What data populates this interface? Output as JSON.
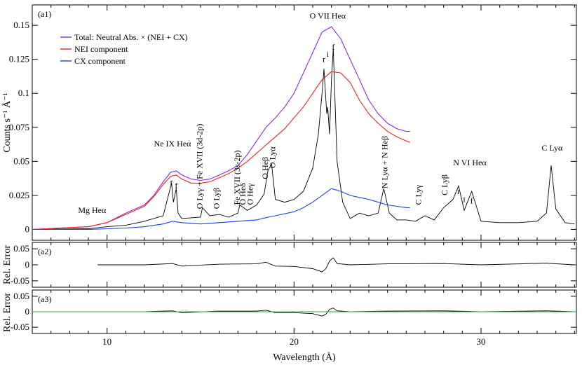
{
  "chart_data": {
    "type": "line",
    "xlabel": "Wavelength (Å)",
    "xlim": [
      6,
      35.1
    ],
    "x_ticks": [
      "10",
      "20",
      "30"
    ],
    "panels": [
      {
        "label": "(a1)",
        "ylabel": "Counts s⁻¹ Å⁻¹",
        "ylim": [
          -0.008,
          0.165
        ],
        "y_ticks": [
          "0",
          "0.025",
          "0.05",
          "0.075",
          "0.1",
          "0.125",
          "0.15"
        ],
        "legend": {
          "placement": "top-left",
          "entries": [
            {
              "name": "Total: Neutral Abs. × (NEI + CX)",
              "color": "#8a2be2"
            },
            {
              "name": "NEI component",
              "color": "#ee2222"
            },
            {
              "name": "CX component",
              "color": "#1f3fe0"
            }
          ]
        },
        "annotations": [
          {
            "text": "O VII Heα",
            "x": 21.8,
            "y": 0.155
          },
          {
            "text": "r",
            "x": 21.6,
            "y": 0.123
          },
          {
            "text": "i",
            "x": 21.8,
            "y": 0.127
          },
          {
            "text": "f",
            "x": 22.1,
            "y": 0.132
          },
          {
            "text": "Ne IX Heα",
            "x": 13.5,
            "y": 0.061
          },
          {
            "text": "r",
            "x": 13.45,
            "y": 0.033
          },
          {
            "text": "f",
            "x": 13.7,
            "y": 0.03
          },
          {
            "text": "Mg Heα",
            "x": 9.2,
            "y": 0.012
          },
          {
            "text": "O Lyγ + Fe XVII (3d-2p)",
            "x": 15.1,
            "y": 0.015
          },
          {
            "text": "O Lyβ",
            "x": 16.0,
            "y": 0.015
          },
          {
            "text": "Fe XVII (3s-2p)",
            "x": 17.1,
            "y": 0.018
          },
          {
            "text": "O Heδ",
            "x": 17.4,
            "y": 0.018
          },
          {
            "text": "O Heγ",
            "x": 17.8,
            "y": 0.018
          },
          {
            "text": "O Heβ",
            "x": 18.6,
            "y": 0.037
          },
          {
            "text": "O Lyα",
            "x": 19.0,
            "y": 0.045
          },
          {
            "text": "N Lyα + N Heβ",
            "x": 25.0,
            "y": 0.03
          },
          {
            "text": "C Lyγ",
            "x": 26.8,
            "y": 0.018
          },
          {
            "text": "C Lyβ",
            "x": 28.2,
            "y": 0.025
          },
          {
            "text": "r",
            "x": 28.8,
            "y": 0.026
          },
          {
            "text": "i",
            "x": 29.1,
            "y": 0.02
          },
          {
            "text": "f",
            "x": 29.5,
            "y": 0.019
          },
          {
            "text": "N VI Heα",
            "x": 29.4,
            "y": 0.047
          },
          {
            "text": "C Lyα",
            "x": 33.8,
            "y": 0.058
          }
        ],
        "series": [
          {
            "name": "Observed data (black)",
            "color": "#000000",
            "x": [
              6,
              9,
              10,
              11,
              12,
              13,
              13.45,
              13.55,
              13.7,
              13.8,
              14,
              15,
              15.1,
              15.5,
              16,
              16.5,
              17,
              17.1,
              17.5,
              18,
              18.4,
              18.6,
              18.8,
              19,
              19.5,
              20,
              20.5,
              21,
              21.3,
              21.5,
              21.6,
              21.75,
              21.8,
              21.9,
              22.0,
              22.1,
              22.3,
              22.6,
              23,
              23.5,
              24,
              24.5,
              24.8,
              25.1,
              25.5,
              26,
              26.5,
              27,
              27.5,
              28,
              28.5,
              28.8,
              29.1,
              29.5,
              30,
              31,
              32,
              33,
              33.5,
              33.75,
              34,
              34.5,
              35
            ],
            "y": [
              0.0,
              0.0005,
              0.002,
              0.003,
              0.006,
              0.01,
              0.034,
              0.02,
              0.03,
              0.012,
              0.008,
              0.009,
              0.016,
              0.01,
              0.011,
              0.009,
              0.012,
              0.018,
              0.014,
              0.018,
              0.026,
              0.043,
              0.048,
              0.022,
              0.02,
              0.022,
              0.028,
              0.045,
              0.07,
              0.1,
              0.118,
              0.085,
              0.09,
              0.07,
              0.11,
              0.133,
              0.05,
              0.02,
              0.008,
              0.012,
              0.01,
              0.012,
              0.03,
              0.012,
              0.007,
              0.007,
              0.006,
              0.01,
              0.007,
              0.016,
              0.022,
              0.032,
              0.014,
              0.028,
              0.006,
              0.005,
              0.005,
              0.006,
              0.012,
              0.047,
              0.015,
              0.005,
              0.004
            ]
          },
          {
            "name": "Total: Neutral Abs. × (NEI + CX)",
            "color": "#8a2be2",
            "x": [
              6,
              9,
              10,
              11,
              12,
              12.5,
              13,
              13.4,
              13.7,
              14,
              14.5,
              15,
              15.5,
              16,
              16.5,
              17,
              17.5,
              18,
              18.5,
              19,
              19.5,
              20,
              20.5,
              21,
              21.5,
              22,
              22.5,
              23,
              23.5,
              24,
              24.5,
              25,
              25.5,
              26,
              26.2
            ],
            "y": [
              0.0,
              0.002,
              0.005,
              0.012,
              0.018,
              0.025,
              0.035,
              0.042,
              0.043,
              0.04,
              0.037,
              0.036,
              0.037,
              0.04,
              0.043,
              0.047,
              0.055,
              0.065,
              0.075,
              0.082,
              0.09,
              0.1,
              0.115,
              0.13,
              0.145,
              0.149,
              0.14,
              0.125,
              0.11,
              0.095,
              0.085,
              0.078,
              0.074,
              0.072,
              0.072
            ]
          },
          {
            "name": "NEI component",
            "color": "#ee2222",
            "x": [
              6,
              9,
              10,
              11,
              12,
              12.5,
              13,
              13.4,
              13.7,
              14,
              14.5,
              15,
              15.5,
              16,
              16.5,
              17,
              17.5,
              18,
              18.5,
              19,
              19.5,
              20,
              20.5,
              21,
              21.5,
              22,
              22.5,
              23,
              23.5,
              24,
              24.5,
              25,
              25.5,
              26,
              26.2
            ],
            "y": [
              0.0,
              0.002,
              0.005,
              0.011,
              0.017,
              0.024,
              0.033,
              0.039,
              0.04,
              0.037,
              0.034,
              0.034,
              0.035,
              0.038,
              0.041,
              0.045,
              0.05,
              0.056,
              0.062,
              0.068,
              0.074,
              0.082,
              0.09,
              0.1,
              0.11,
              0.116,
              0.115,
              0.108,
              0.095,
              0.085,
              0.078,
              0.072,
              0.068,
              0.065,
              0.064
            ]
          },
          {
            "name": "CX component",
            "color": "#1f3fe0",
            "x": [
              6,
              9,
              10,
              11,
              12,
              13,
              13.5,
              14,
              15,
              16,
              17,
              18,
              18.6,
              19,
              20,
              20.5,
              21,
              21.5,
              22,
              22.5,
              23,
              24,
              25,
              26,
              26.2
            ],
            "y": [
              0.0,
              0.0,
              0.0005,
              0.001,
              0.002,
              0.004,
              0.006,
              0.005,
              0.004,
              0.005,
              0.006,
              0.007,
              0.009,
              0.01,
              0.013,
              0.016,
              0.02,
              0.025,
              0.03,
              0.028,
              0.025,
              0.022,
              0.018,
              0.016,
              0.016
            ]
          }
        ]
      },
      {
        "label": "(a2)",
        "ylabel": "Rel. Error",
        "ylim": [
          -0.07,
          0.07
        ],
        "y_ticks": [
          "0.05",
          "0",
          "-0.05"
        ],
        "series": [
          {
            "name": "Residuals",
            "color": "#000000",
            "x": [
              9.5,
              12,
              13.5,
              14,
              16,
              18,
              18.5,
              19,
              20,
              21,
              21.5,
              21.7,
              21.9,
              22.1,
              22.3,
              23,
              25,
              28,
              30,
              33.5,
              35
            ],
            "y": [
              0.0,
              0.0,
              0.004,
              -0.004,
              0.002,
              0.003,
              0.008,
              -0.004,
              -0.005,
              -0.012,
              -0.022,
              -0.012,
              0.012,
              0.022,
              0.004,
              0.0,
              0.003,
              0.004,
              0.0,
              0.005,
              0.0
            ]
          }
        ]
      },
      {
        "label": "(a3)",
        "ylabel": "Rel. Error",
        "ylim": [
          -0.07,
          0.07
        ],
        "y_ticks": [
          "0.05",
          "0",
          "-0.05"
        ],
        "series": [
          {
            "name": "Residuals",
            "color": "#000000",
            "x": [
              9.5,
              12,
              13.5,
              14,
              16,
              18,
              18.5,
              19,
              20,
              21,
              21.5,
              21.7,
              21.9,
              22.1,
              22.3,
              23,
              25,
              28,
              30,
              33.5,
              35
            ],
            "y": [
              0.0,
              0.0,
              0.003,
              -0.003,
              0.002,
              0.002,
              0.005,
              -0.003,
              -0.003,
              -0.006,
              -0.014,
              -0.008,
              0.008,
              0.012,
              0.003,
              0.0,
              0.002,
              0.003,
              0.0,
              0.003,
              0.0
            ]
          },
          {
            "name": "Zero level",
            "color": "#22aa44",
            "x": [
              6,
              35.1
            ],
            "y": [
              0,
              0
            ]
          }
        ]
      }
    ]
  }
}
